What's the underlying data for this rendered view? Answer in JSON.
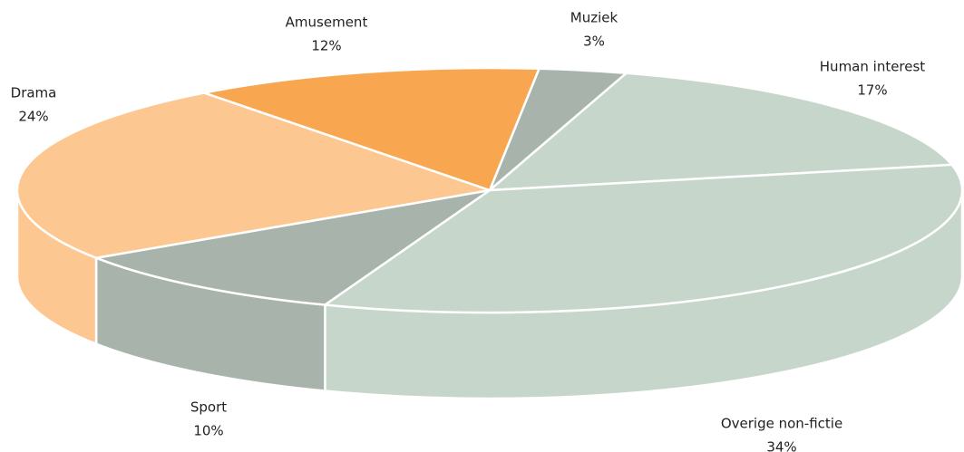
{
  "chart_data": {
    "type": "pie3d",
    "categories": [
      "Muziek",
      "Human interest",
      "Overige non-fictie",
      "Sport",
      "Drama",
      "Amusement"
    ],
    "values": [
      3,
      17,
      34,
      10,
      24,
      12
    ],
    "value_labels": [
      "3%",
      "17%",
      "34%",
      "10%",
      "24%",
      "12%"
    ],
    "colors": [
      "#a8b4ab",
      "#c6d6cb",
      "#c6d6cb",
      "#a8b4ab",
      "#fdc791",
      "#f8a64f"
    ]
  }
}
